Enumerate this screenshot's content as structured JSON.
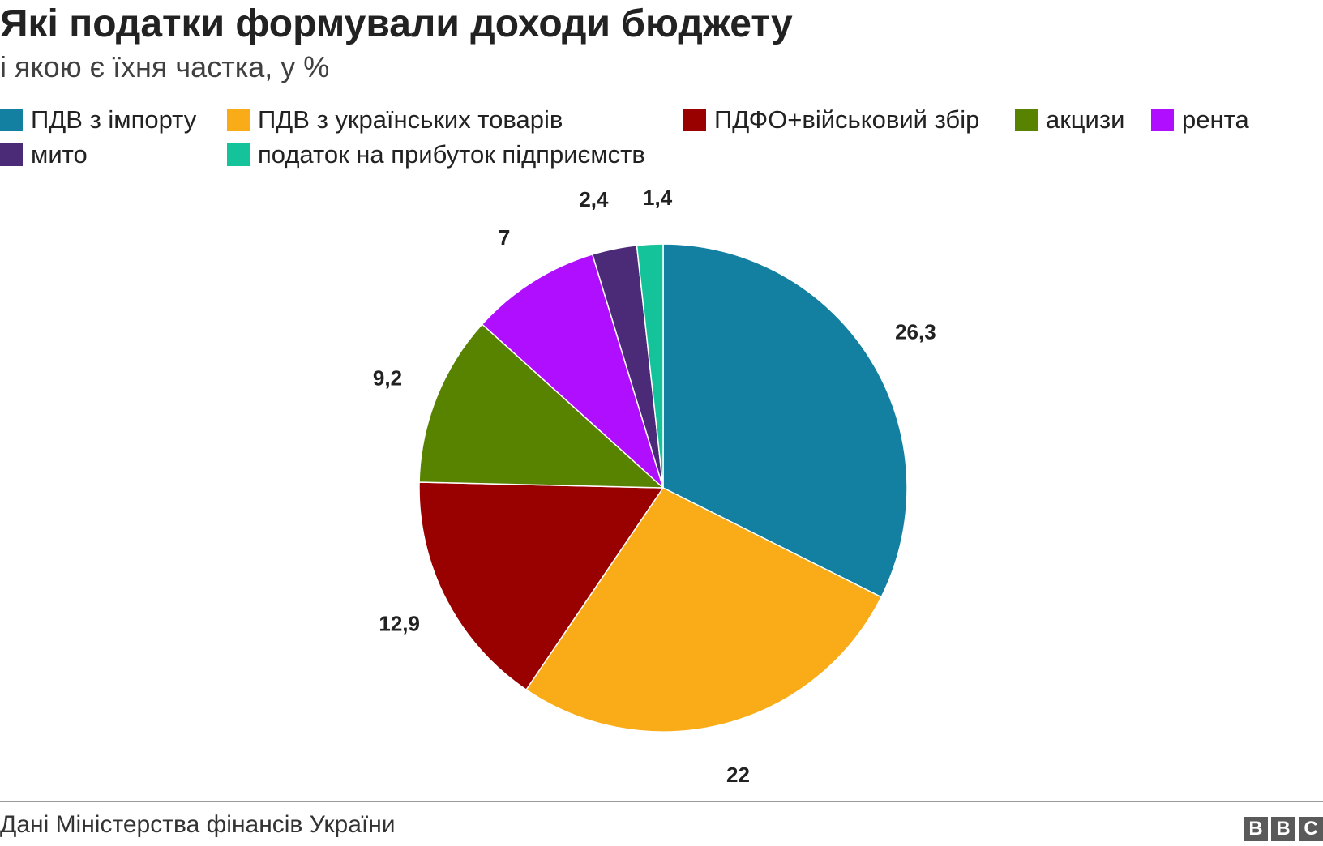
{
  "header": {
    "title": "Які податки формували доходи бюджету",
    "subtitle": "і якою є їхня частка, у %"
  },
  "footer": {
    "source": "Дані Міністерства фінансів України",
    "logo": [
      "B",
      "B",
      "C"
    ]
  },
  "chart_data": {
    "type": "pie",
    "title": "Які податки формували доходи бюджету",
    "subtitle": "і якою є їхня частка, у %",
    "legend_position": "top",
    "categories": [
      "ПДВ з імпорту",
      "ПДВ з українських товарів",
      "ПДФО+військовий збір",
      "акцизи",
      "рента",
      "мито",
      "податок на прибуток підприємств"
    ],
    "values": [
      26.3,
      22,
      12.9,
      9.2,
      7,
      2.4,
      1.4
    ],
    "value_labels": [
      "26,3",
      "22",
      "12,9",
      "9,2",
      "7",
      "2,4",
      "1,4"
    ],
    "colors": [
      "#1380A1",
      "#FAAB18",
      "#990000",
      "#588300",
      "#B00FFF",
      "#4B2A78",
      "#15C39A"
    ]
  }
}
